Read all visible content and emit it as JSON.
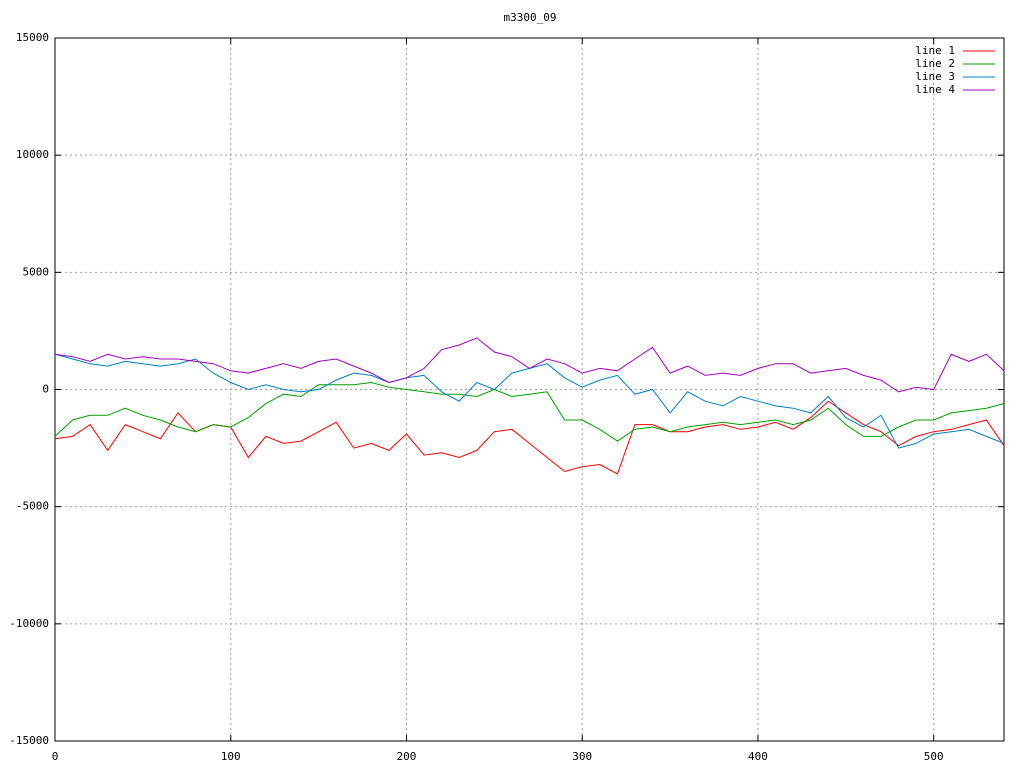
{
  "chart_data": {
    "type": "line",
    "title": "m3300_09",
    "x": [
      0,
      10,
      20,
      30,
      40,
      50,
      60,
      70,
      80,
      90,
      100,
      110,
      120,
      130,
      140,
      150,
      160,
      170,
      180,
      190,
      200,
      210,
      220,
      230,
      240,
      250,
      260,
      270,
      280,
      290,
      300,
      310,
      320,
      330,
      340,
      350,
      360,
      370,
      380,
      390,
      400,
      410,
      420,
      430,
      440,
      450,
      460,
      470,
      480,
      490,
      500,
      510,
      520,
      530,
      540
    ],
    "series": [
      {
        "name": "line 1",
        "color": "#ff0000",
        "values": [
          -2100,
          -2000,
          -1500,
          -2600,
          -1500,
          -1800,
          -2100,
          -1000,
          -1800,
          -1500,
          -1600,
          -2900,
          -2000,
          -2300,
          -2200,
          -1800,
          -1400,
          -2500,
          -2300,
          -2600,
          -1900,
          -2800,
          -2700,
          -2900,
          -2600,
          -1800,
          -1700,
          -2300,
          -2900,
          -3500,
          -3300,
          -3200,
          -3600,
          -1500,
          -1500,
          -1800,
          -1800,
          -1600,
          -1500,
          -1700,
          -1600,
          -1400,
          -1700,
          -1200,
          -500,
          -1000,
          -1500,
          -1800,
          -2400,
          -2000,
          -1800,
          -1700,
          -1500,
          -1300,
          -2400
        ]
      },
      {
        "name": "line 2",
        "color": "#00a000",
        "values": [
          -2000,
          -1300,
          -1100,
          -1100,
          -800,
          -1100,
          -1300,
          -1600,
          -1800,
          -1500,
          -1600,
          -1200,
          -600,
          -200,
          -300,
          200,
          200,
          200,
          300,
          100,
          0,
          -100,
          -200,
          -200,
          -300,
          0,
          -300,
          -200,
          -100,
          -1300,
          -1300,
          -1700,
          -2200,
          -1700,
          -1600,
          -1800,
          -1600,
          -1500,
          -1400,
          -1500,
          -1400,
          -1300,
          -1500,
          -1300,
          -800,
          -1500,
          -2000,
          -2000,
          -1600,
          -1300,
          -1300,
          -1000,
          -900,
          -800,
          -600
        ]
      },
      {
        "name": "line 3",
        "color": "#0080c0",
        "values": [
          1500,
          1300,
          1100,
          1000,
          1200,
          1100,
          1000,
          1100,
          1300,
          700,
          300,
          0,
          200,
          0,
          -100,
          0,
          400,
          700,
          600,
          300,
          500,
          600,
          -100,
          -500,
          300,
          0,
          700,
          900,
          1100,
          500,
          100,
          400,
          600,
          -200,
          0,
          -1000,
          -100,
          -500,
          -700,
          -300,
          -500,
          -700,
          -800,
          -1000,
          -300,
          -1200,
          -1600,
          -1100,
          -2500,
          -2300,
          -1900,
          -1800,
          -1700,
          -2000,
          -2300
        ]
      },
      {
        "name": "line 4",
        "color": "#a000c0",
        "values": [
          1500,
          1400,
          1200,
          1500,
          1300,
          1400,
          1300,
          1300,
          1200,
          1100,
          800,
          700,
          900,
          1100,
          900,
          1200,
          1300,
          1000,
          700,
          300,
          500,
          900,
          1700,
          1900,
          2200,
          1600,
          1400,
          900,
          1300,
          1100,
          700,
          900,
          800,
          1300,
          1800,
          700,
          1000,
          600,
          700,
          600,
          900,
          1100,
          1100,
          700,
          800,
          900,
          600,
          400,
          -100,
          100,
          0,
          1500,
          1200,
          1500,
          800
        ]
      }
    ],
    "xlim": [
      0,
      540
    ],
    "ylim": [
      -15000,
      15000
    ],
    "xticks": [
      0,
      100,
      200,
      300,
      400,
      500
    ],
    "yticks": [
      -15000,
      -10000,
      -5000,
      0,
      5000,
      10000,
      15000
    ],
    "grid": true,
    "legend": "top-right"
  }
}
